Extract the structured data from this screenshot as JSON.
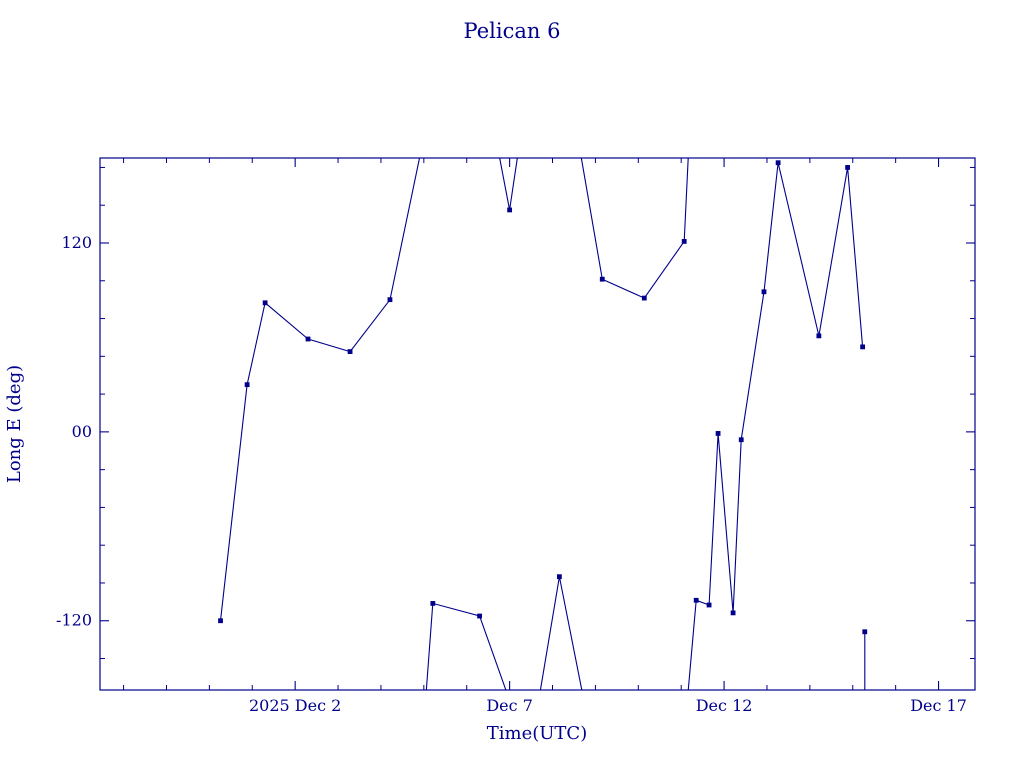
{
  "page": {
    "background": "#ffffff"
  },
  "chart_data": {
    "type": "line",
    "title": "Pelican 6",
    "xlabel": "Time(UTC)",
    "ylabel": "Long E (deg)",
    "line_color": "#00008b",
    "marker": "square",
    "x_axis_note": "x values are days relative to 2025 Dec 2 (tick labels shown on axis)",
    "xlim": [
      -4.55,
      15.85
    ],
    "ylim": [
      -164,
      174
    ],
    "x_major_ticks": [
      {
        "day": 0,
        "label": "2025 Dec 2"
      },
      {
        "day": 5,
        "label": "Dec 7"
      },
      {
        "day": 10,
        "label": "Dec 12"
      },
      {
        "day": 15,
        "label": "Dec 17"
      }
    ],
    "x_minor_step": 1,
    "y_major_ticks": [
      {
        "value": 120,
        "label": "120"
      },
      {
        "value": 0,
        "label": "00"
      },
      {
        "value": -120,
        "label": "-120"
      }
    ],
    "y_minor_step": 24,
    "grid": false,
    "legend": false,
    "segments": [
      {
        "points": [
          [
            -1.74,
            -120,
            1
          ],
          [
            -1.12,
            30,
            1
          ],
          [
            -0.7,
            82,
            1
          ],
          [
            0.3,
            59,
            1
          ],
          [
            1.28,
            51,
            1
          ],
          [
            2.21,
            84,
            1
          ],
          [
            3.25,
            220,
            0
          ]
        ]
      },
      {
        "points": [
          [
            4.55,
            205,
            0
          ],
          [
            5.0,
            141,
            1
          ],
          [
            5.35,
            205,
            0
          ]
        ]
      },
      {
        "points": [
          [
            6.52,
            198,
            0
          ],
          [
            7.16,
            97,
            1
          ],
          [
            8.14,
            85,
            1
          ],
          [
            9.07,
            121,
            1
          ],
          [
            9.2,
            195,
            0
          ]
        ]
      },
      {
        "points": [
          [
            9.12,
            -178,
            0
          ],
          [
            9.35,
            -107,
            1
          ],
          [
            9.65,
            -110,
            1
          ],
          [
            9.86,
            -1,
            1
          ],
          [
            10.21,
            -115,
            1
          ],
          [
            10.4,
            -5,
            1
          ],
          [
            10.93,
            89,
            1
          ],
          [
            11.26,
            171,
            1
          ],
          [
            12.21,
            61,
            1
          ],
          [
            12.88,
            168,
            1
          ],
          [
            13.23,
            54,
            1
          ]
        ]
      },
      {
        "points": [
          [
            13.28,
            -178,
            0
          ],
          [
            13.28,
            -127,
            1
          ]
        ]
      },
      {
        "points": [
          [
            3.02,
            -178,
            0
          ],
          [
            3.21,
            -109,
            1
          ],
          [
            4.3,
            -117,
            1
          ],
          [
            5.12,
            -180,
            0
          ]
        ]
      },
      {
        "points": [
          [
            5.62,
            -180,
            0
          ],
          [
            6.16,
            -92,
            1
          ],
          [
            6.8,
            -180,
            0
          ]
        ]
      }
    ]
  }
}
